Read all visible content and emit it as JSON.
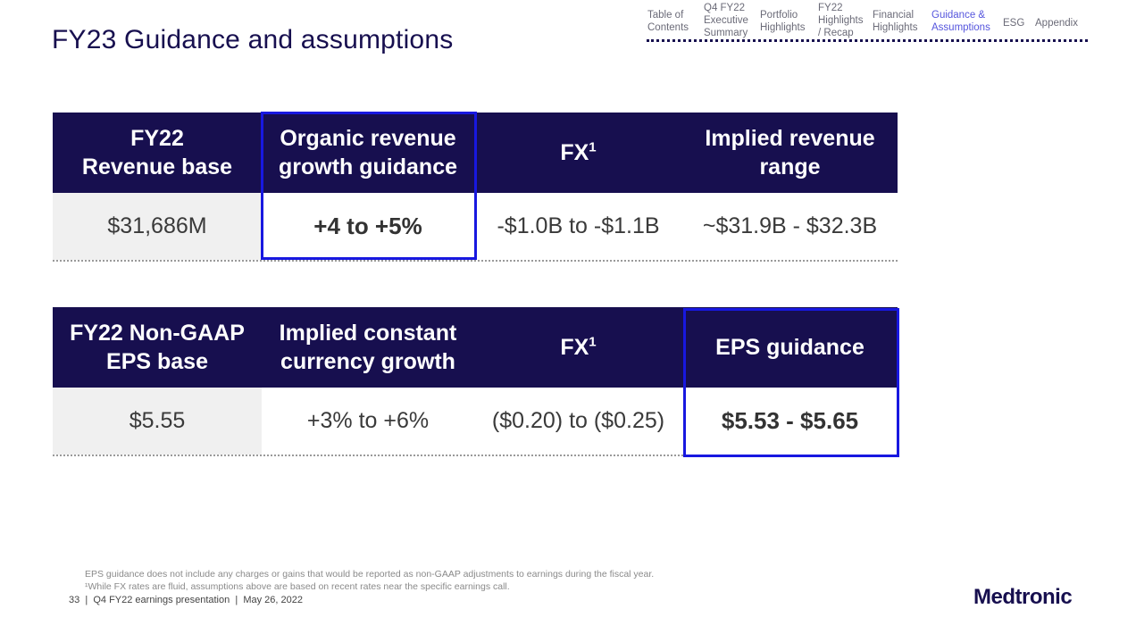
{
  "page": {
    "title": "FY23 Guidance and assumptions"
  },
  "nav": {
    "items": [
      {
        "label": "Table of Contents",
        "active": false
      },
      {
        "label": "Q4 FY22 Executive Summary",
        "active": false
      },
      {
        "label": "Portfolio Highlights",
        "active": false
      },
      {
        "label": "FY22 Highlights / Recap",
        "active": false
      },
      {
        "label": "Financial Highlights",
        "active": false
      },
      {
        "label": "Guidance & Assumptions",
        "active": true
      },
      {
        "label": "ESG",
        "active": false
      },
      {
        "label": "Appendix",
        "active": false
      }
    ],
    "lines": {
      "toc_1": "Table of",
      "toc_2": "Contents",
      "exec_1": "Q4 FY22",
      "exec_2": "Executive",
      "exec_3": "Summary",
      "port_1": "Portfolio",
      "port_2": "Highlights",
      "fy22_1": "FY22",
      "fy22_2": "Highlights",
      "fy22_3": "/ Recap",
      "fin_1": "Financial",
      "fin_2": "Highlights",
      "guid_1": "Guidance &",
      "guid_2": "Assumptions",
      "esg": "ESG",
      "app": "Appendix"
    }
  },
  "revenue_table": {
    "headers": [
      {
        "line1": "FY22",
        "line2": "Revenue base"
      },
      {
        "line1": "Organic revenue",
        "line2": "growth guidance"
      },
      {
        "text": "FX",
        "sup": "1"
      },
      {
        "line1": "Implied revenue",
        "line2": "range"
      }
    ],
    "values": [
      "$31,686M",
      "+4 to +5%",
      "-$1.0B to -$1.1B",
      "~$31.9B - $32.3B"
    ]
  },
  "eps_table": {
    "headers": [
      {
        "line1": "FY22 Non-GAAP",
        "line2": "EPS base"
      },
      {
        "line1": "Implied constant",
        "line2": "currency growth"
      },
      {
        "text": "FX",
        "sup": "1"
      },
      {
        "text": "EPS guidance"
      }
    ],
    "values": [
      "$5.55",
      "+3% to +6%",
      "($0.20) to ($0.25)",
      "$5.53 - $5.65"
    ]
  },
  "footnotes": {
    "eps": "EPS guidance does not include any charges or gains that would be reported as non-GAAP adjustments to earnings during the fiscal year.",
    "fx": "¹While FX rates are fluid, assumptions above are based on recent rates near the specific earnings call."
  },
  "footer": {
    "page_number": "33",
    "presentation": "Q4 FY22 earnings presentation",
    "date": "May 26, 2022",
    "separator": "|"
  },
  "brand": {
    "logo_text": "Medtronic",
    "navy": "#170f4f",
    "highlight_blue": "#1818e0",
    "active_nav": "#5555dd"
  }
}
